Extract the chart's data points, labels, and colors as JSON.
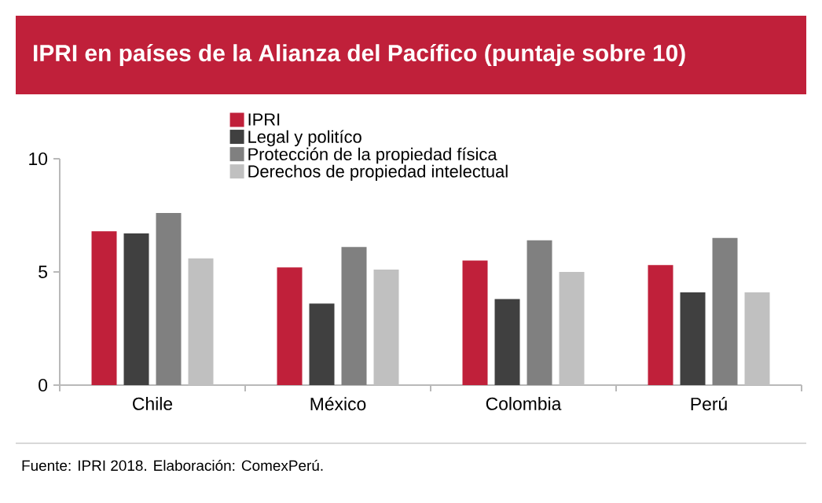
{
  "chart_data": {
    "type": "bar",
    "title": "IPRI en países de la Alianza del Pacífico (puntaje sobre 10)",
    "categories": [
      "Chile",
      "México",
      "Colombia",
      "Perú"
    ],
    "series": [
      {
        "name": "IPRI",
        "color": "#c0203a",
        "values": [
          6.8,
          5.2,
          5.5,
          5.3
        ]
      },
      {
        "name": "Legal y politíco",
        "color": "#404040",
        "values": [
          6.7,
          3.6,
          3.8,
          4.1
        ]
      },
      {
        "name": "Protección de la propiedad física",
        "color": "#808080",
        "values": [
          7.6,
          6.1,
          6.4,
          6.5
        ]
      },
      {
        "name": "Derechos de propiedad intelectual",
        "color": "#c0c0c0",
        "values": [
          5.6,
          5.1,
          5.0,
          4.1
        ]
      }
    ],
    "ylim": [
      0,
      10
    ],
    "yticks": [
      0,
      5,
      10
    ],
    "grid": false,
    "legend": "top left",
    "annotations": [
      "Fuente: IPRI 2018. Elaboración: ComexPerú."
    ]
  }
}
